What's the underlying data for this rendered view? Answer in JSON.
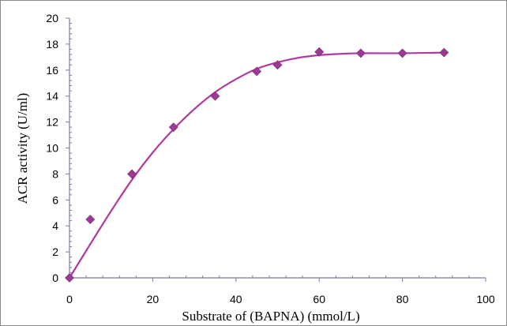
{
  "chart_data": {
    "type": "scatter",
    "title": "",
    "xlabel": "Substrate of (BAPNA) (mmol/L)",
    "ylabel": "ACR activity (U/ml)",
    "xlim": [
      0,
      100
    ],
    "ylim": [
      0,
      20
    ],
    "x_ticks": [
      0,
      20,
      40,
      60,
      80,
      100
    ],
    "y_ticks": [
      0,
      2,
      4,
      6,
      8,
      10,
      12,
      14,
      16,
      18,
      20
    ],
    "x_tick_labels": [
      "0",
      "20",
      "40",
      "60",
      "80",
      "100"
    ],
    "y_tick_labels": [
      "0",
      "2",
      "4",
      "6",
      "8",
      "10",
      "12",
      "14",
      "16",
      "18",
      "20"
    ],
    "grid": false,
    "legend": false,
    "series": [
      {
        "marker": "diamond",
        "color": "#9b3a93",
        "x": [
          0,
          5,
          15,
          25,
          35,
          45,
          50,
          60,
          70,
          80,
          90
        ],
        "y": [
          0,
          4.5,
          8.0,
          11.6,
          14.0,
          15.9,
          16.4,
          17.4,
          17.3,
          17.3,
          17.35
        ]
      }
    ],
    "fitted_curve": {
      "color": "#b0399e",
      "x": [
        0,
        5,
        10,
        15,
        20,
        25,
        30,
        35,
        40,
        45,
        50,
        55,
        60,
        65,
        70,
        75,
        80,
        85,
        90
      ],
      "y": [
        0,
        2.6,
        5.15,
        7.55,
        9.65,
        11.45,
        13.0,
        14.3,
        15.3,
        16.1,
        16.6,
        16.95,
        17.15,
        17.25,
        17.3,
        17.3,
        17.3,
        17.32,
        17.35
      ]
    },
    "colors": {
      "marker": "#9b3a93",
      "curve": "#b0399e",
      "axis": "#7b7baa"
    }
  }
}
